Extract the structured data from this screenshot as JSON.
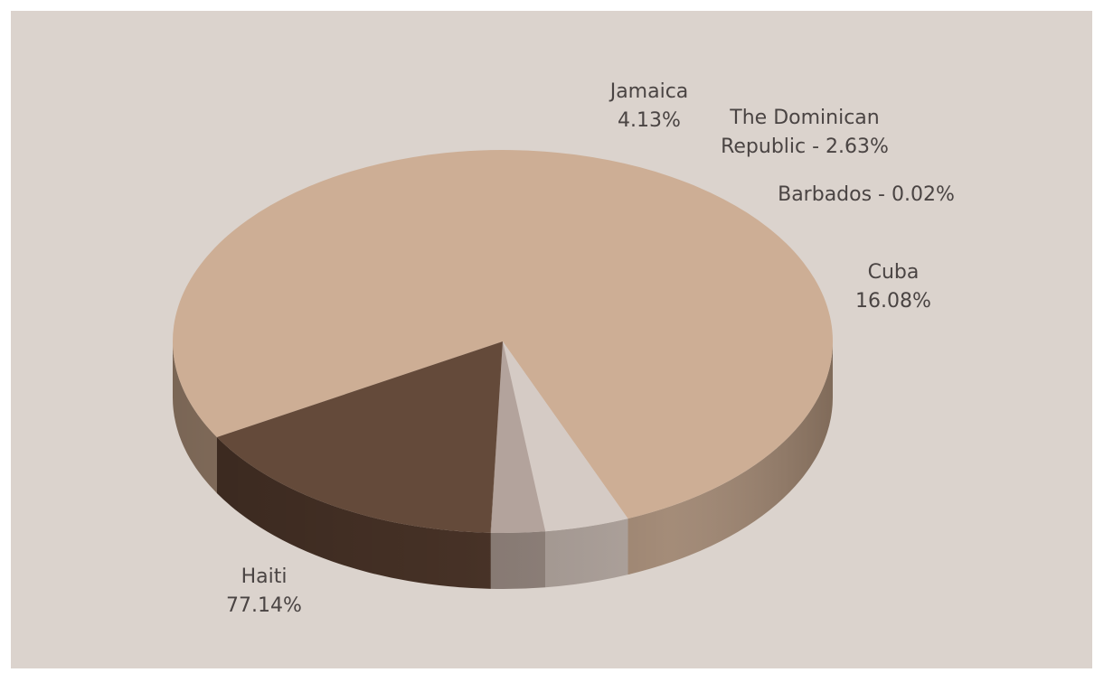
{
  "chart_data": {
    "type": "pie",
    "style": "3d",
    "title": "",
    "slices": [
      {
        "name": "Haiti",
        "value": 77.14,
        "color": "#cdae95",
        "side_color": "#9c826d",
        "label_lines": [
          "Haiti",
          "77.14%"
        ]
      },
      {
        "name": "Jamaica",
        "value": 4.13,
        "color": "#d5cbc5",
        "side_color": "#a89c95",
        "label_lines": [
          "Jamaica",
          "4.13%"
        ]
      },
      {
        "name": "The Dominican Republic",
        "value": 2.63,
        "color": "#b3a39c",
        "side_color": "#8d7f78",
        "label_lines": [
          "The Dominican",
          "Republic - 2.63%"
        ]
      },
      {
        "name": "Barbados",
        "value": 0.02,
        "color": "#8f7a6f",
        "side_color": "#6f5d54",
        "label_lines": [
          "Barbados - 0.02%"
        ]
      },
      {
        "name": "Cuba",
        "value": 16.08,
        "color": "#644a3a",
        "side_color": "#4a3428",
        "label_lines": [
          "Cuba",
          "16.08%"
        ]
      }
    ],
    "background_color": "#dbd3cd",
    "legend": "none",
    "grid": false
  }
}
